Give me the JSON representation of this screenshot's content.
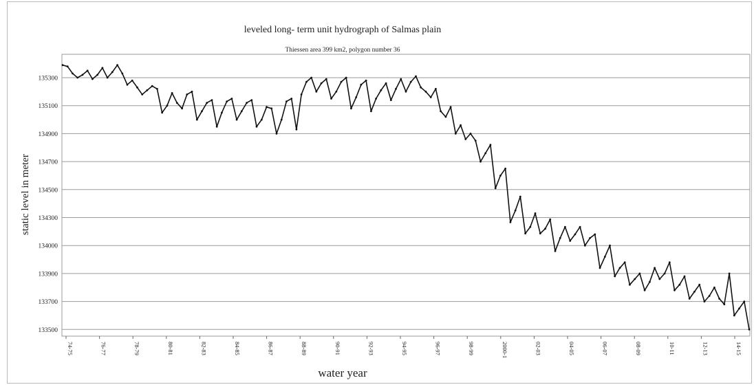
{
  "chart_data": {
    "type": "line",
    "title": "leveled long- term unit hydrograph of Salmas plain",
    "subtitle": "Thiessen area 399 km2, polygon number 36",
    "xlabel": "water year",
    "ylabel": "static level in meter",
    "x_tick_labels": [
      "74-75",
      "76-77",
      "78-79",
      "80-81",
      "82-83",
      "84-85",
      "86-87",
      "88-89",
      "90-91",
      "92-93",
      "94-95",
      "96-97",
      "98-99",
      "2000-1",
      "02-03",
      "04-05",
      "06-07",
      "08-09",
      "10-11",
      "12-13",
      "14-15"
    ],
    "y_tick_labels": [
      "133500",
      "133700",
      "133900",
      "134000",
      "134300",
      "134500",
      "134700",
      "134900",
      "135100",
      "135300"
    ],
    "grid": true,
    "legend": "none",
    "line_color": "#111111",
    "series": [
      {
        "values": [
          135390,
          135380,
          135330,
          135300,
          135320,
          135350,
          135290,
          135320,
          135370,
          135300,
          135340,
          135390,
          135330,
          135250,
          135280,
          135230,
          135180,
          135210,
          135240,
          135220,
          135050,
          135100,
          135190,
          135120,
          135080,
          135180,
          135200,
          135000,
          135060,
          135120,
          135140,
          134950,
          135050,
          135130,
          135150,
          135000,
          135060,
          135120,
          135140,
          134950,
          135000,
          135090,
          135080,
          134900,
          135000,
          135130,
          135150,
          134930,
          135180,
          135270,
          135300,
          135200,
          135260,
          135290,
          135150,
          135200,
          135270,
          135300,
          135080,
          135160,
          135250,
          135280,
          135060,
          135150,
          135210,
          135260,
          135140,
          135220,
          135290,
          135200,
          135270,
          135310,
          135230,
          135200,
          135160,
          135220,
          135060,
          135020,
          135090,
          134900,
          134960,
          134860,
          134900,
          134850,
          134700,
          134760,
          134820,
          134510,
          134600,
          134650,
          134250,
          134350,
          134450,
          134130,
          134200,
          134330,
          134130,
          134180,
          134280,
          133980,
          134080,
          134200,
          134050,
          134120,
          134200,
          134000,
          134080,
          134120,
          133920,
          133960,
          134000,
          133880,
          133920,
          133940,
          133820,
          133860,
          133900,
          133780,
          133840,
          133920,
          133860,
          133900,
          133940,
          133780,
          133820,
          133880,
          133720,
          133770,
          133820,
          133700,
          133740,
          133800,
          133720,
          133680,
          133900,
          133600,
          133650,
          133700,
          133500
        ]
      }
    ]
  }
}
